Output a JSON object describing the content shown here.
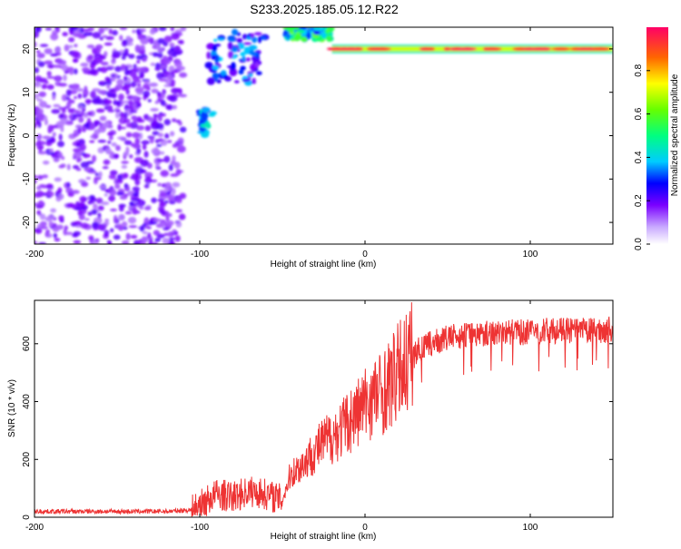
{
  "title": "S233.2025.185.05.12.R22",
  "chart_data": [
    {
      "type": "heatmap",
      "xlabel": "Height of straight line (km)",
      "ylabel": "Frequency (Hz)",
      "xlim": [
        -200,
        150
      ],
      "ylim": [
        -25,
        25
      ],
      "xticks": [
        -200,
        -100,
        0,
        100
      ],
      "xtick_labels": [
        "-200",
        "-100",
        "0",
        "100"
      ],
      "yticks": [
        -20,
        -10,
        0,
        10,
        20
      ],
      "ytick_labels": [
        "-20",
        "-10",
        "0",
        "10",
        "20"
      ],
      "colorbar": {
        "label": "Normalized spectral amplitude",
        "range": [
          0,
          1
        ],
        "ticks": [
          0,
          0.2,
          0.4,
          0.6,
          0.8
        ],
        "tick_labels": [
          "0.0",
          "0.2",
          "0.4",
          "0.6",
          "0.8"
        ]
      },
      "regions": [
        {
          "kind": "scatter-noise",
          "x": [
            -200,
            -110
          ],
          "y": [
            -25,
            25
          ],
          "level": 0.1
        },
        {
          "kind": "blob",
          "x": [
            -100,
            -92
          ],
          "y": [
            0,
            6
          ],
          "level": 0.35
        },
        {
          "kind": "band",
          "x": [
            -95,
            -60
          ],
          "y": [
            12,
            24
          ],
          "level": 0.3
        },
        {
          "kind": "band",
          "x": [
            -48,
            -20
          ],
          "y": [
            22,
            25
          ],
          "level": 0.5
        },
        {
          "kind": "line",
          "x": [
            -20,
            150
          ],
          "y": [
            19,
            21
          ],
          "level": 0.9
        }
      ]
    },
    {
      "type": "line",
      "xlabel": "Height of straight line (km)",
      "ylabel": "SNR (10 * v/v)",
      "xlim": [
        -200,
        150
      ],
      "ylim": [
        0,
        750
      ],
      "xticks": [
        -200,
        -100,
        0,
        100
      ],
      "xtick_labels": [
        "-200",
        "-100",
        "0",
        "100"
      ],
      "yticks": [
        0,
        200,
        400,
        600
      ],
      "ytick_labels": [
        "0",
        "200",
        "400",
        "600"
      ],
      "color": "#ee3333",
      "series": [
        {
          "x": [
            -200,
            -180,
            -160,
            -140,
            -120,
            -105,
            -100,
            -90,
            -80,
            -70,
            -60,
            -50,
            -45,
            -40,
            -35,
            -30,
            -25,
            -20,
            -15,
            -10,
            -5,
            0,
            5,
            10,
            15,
            20,
            25,
            30,
            40,
            50,
            60,
            70,
            80,
            90,
            100,
            110,
            120,
            130,
            140,
            150
          ],
          "y": [
            20,
            20,
            20,
            20,
            20,
            25,
            40,
            80,
            70,
            90,
            80,
            60,
            150,
            170,
            200,
            230,
            260,
            280,
            300,
            330,
            360,
            390,
            420,
            430,
            460,
            500,
            540,
            570,
            600,
            620,
            630,
            635,
            640,
            640,
            640,
            645,
            645,
            645,
            645,
            650
          ]
        }
      ]
    }
  ]
}
